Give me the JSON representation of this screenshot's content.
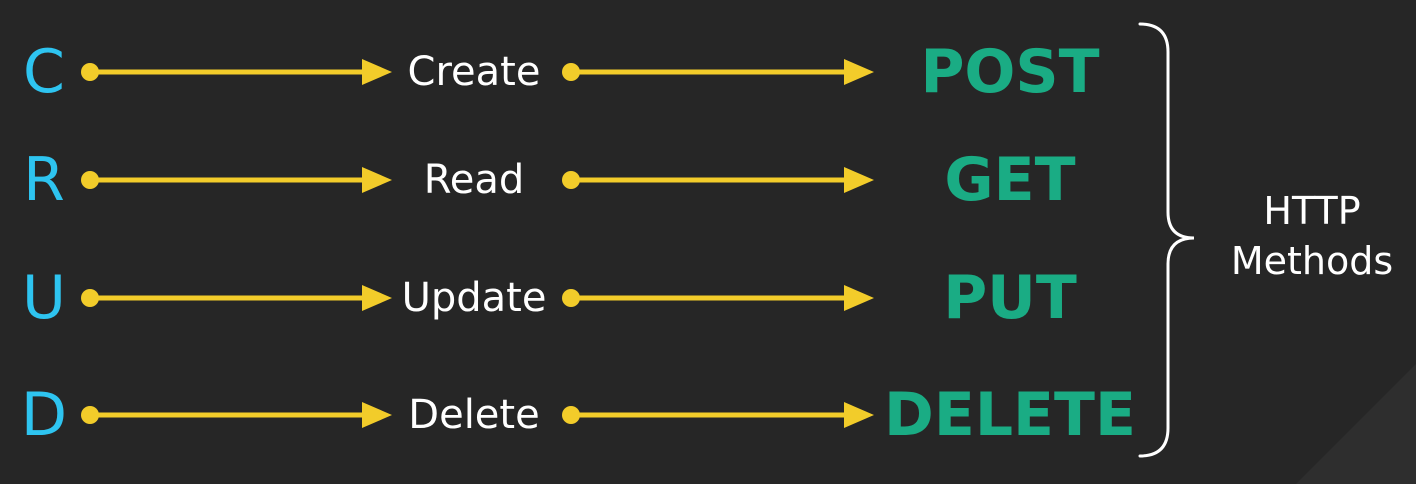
{
  "colors": {
    "background": "#262626",
    "letter": "#2ec4f0",
    "action": "#ffffff",
    "method": "#1aac84",
    "arrow": "#f2cc2a",
    "brace": "#ffffff",
    "brace_label": "#ffffff"
  },
  "rows": [
    {
      "letter": "C",
      "action": "Create",
      "method": "POST"
    },
    {
      "letter": "R",
      "action": "Read",
      "method": "GET"
    },
    {
      "letter": "U",
      "action": "Update",
      "method": "PUT"
    },
    {
      "letter": "D",
      "action": "Delete",
      "method": "DELETE"
    }
  ],
  "brace_label": {
    "line1": "HTTP",
    "line2": "Methods"
  }
}
